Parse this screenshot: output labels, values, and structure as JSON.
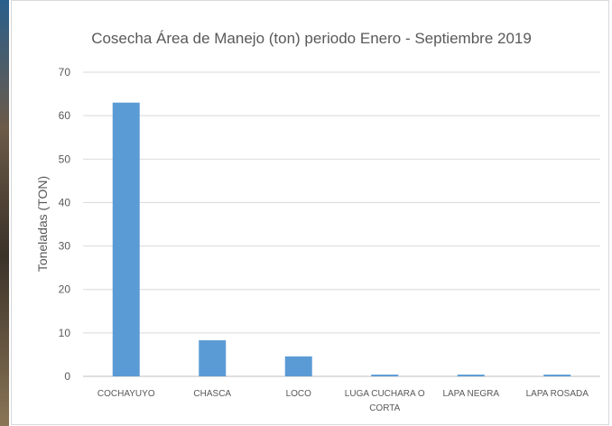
{
  "chart_data": {
    "type": "bar",
    "title": "Cosecha Área de Manejo (ton) periodo Enero - Septiembre 2019",
    "y_label": "Toneladas (TON)",
    "categories": [
      "COCHAYUYO",
      "CHASCA",
      "LOCO",
      "LUGA CUCHARA O CORTA",
      "LAPA NEGRA",
      "LAPA ROSADA"
    ],
    "values": [
      63,
      8.3,
      4.6,
      0.4,
      0.4,
      0.4
    ],
    "color": "#5b9bd5",
    "ylim": [
      0,
      70
    ],
    "yticks": [
      0,
      10,
      20,
      30,
      40,
      50,
      60,
      70
    ],
    "grid": true
  }
}
